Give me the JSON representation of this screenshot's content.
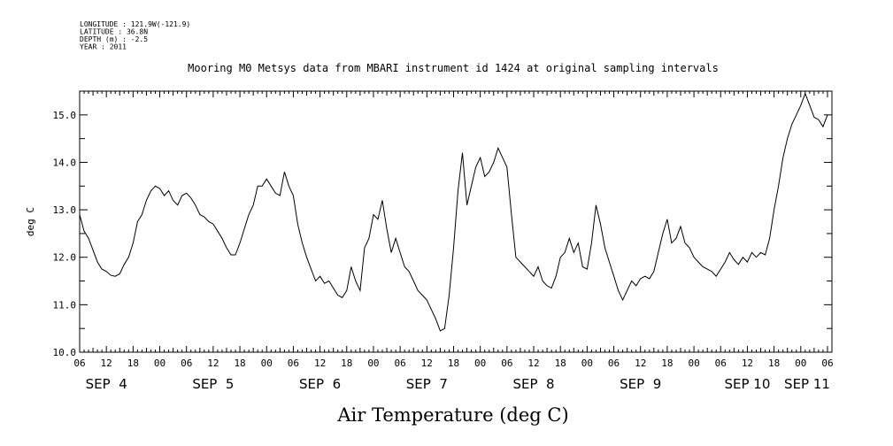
{
  "header": {
    "meta_lines": [
      "LONGITUDE : 121.9W(-121.9)",
      "LATITUDE : 36.8N",
      "DEPTH (m) : -2.5",
      "YEAR : 2011"
    ]
  },
  "chart_data": {
    "type": "line",
    "title": "Mooring M0 Metsys data from MBARI instrument id 1424 at original sampling intervals",
    "xlabel": "Air Temperature (deg C)",
    "ylabel": "deg C",
    "ylim": [
      10.0,
      15.5
    ],
    "y_ticks": [
      "10.0",
      "11.0",
      "12.0",
      "13.0",
      "14.0",
      "15.0"
    ],
    "xlim": [
      "2011-09-04T06:00",
      "2011-09-11T07:00"
    ],
    "x_hour_labels": [
      "06",
      "12",
      "18",
      "00",
      "06",
      "12",
      "18",
      "00",
      "06",
      "12",
      "18",
      "00",
      "06",
      "12",
      "18",
      "00",
      "06",
      "12",
      "18",
      "00",
      "06",
      "12",
      "18",
      "00",
      "06",
      "12",
      "18",
      "00",
      "06"
    ],
    "day_labels": [
      {
        "label": "SEP  4",
        "date": "2011-09-04"
      },
      {
        "label": "SEP  5",
        "date": "2011-09-05"
      },
      {
        "label": "SEP  6",
        "date": "2011-09-06"
      },
      {
        "label": "SEP  7",
        "date": "2011-09-07"
      },
      {
        "label": "SEP  8",
        "date": "2011-09-08"
      },
      {
        "label": "SEP  9",
        "date": "2011-09-09"
      },
      {
        "label": "SEP 10",
        "date": "2011-09-10"
      },
      {
        "label": "SEP 11",
        "date": "2011-09-11"
      }
    ],
    "grid": false,
    "series": [
      {
        "color": "#000000",
        "points": [
          [
            "2011-09-04T06:00",
            12.9
          ],
          [
            "2011-09-04T07:00",
            12.55
          ],
          [
            "2011-09-04T08:00",
            12.4
          ],
          [
            "2011-09-04T09:00",
            12.15
          ],
          [
            "2011-09-04T10:00",
            11.9
          ],
          [
            "2011-09-04T11:00",
            11.75
          ],
          [
            "2011-09-04T12:00",
            11.7
          ],
          [
            "2011-09-04T13:00",
            11.62
          ],
          [
            "2011-09-04T14:00",
            11.6
          ],
          [
            "2011-09-04T15:00",
            11.65
          ],
          [
            "2011-09-04T16:00",
            11.85
          ],
          [
            "2011-09-04T17:00",
            12.0
          ],
          [
            "2011-09-04T18:00",
            12.3
          ],
          [
            "2011-09-04T19:00",
            12.75
          ],
          [
            "2011-09-04T20:00",
            12.9
          ],
          [
            "2011-09-04T21:00",
            13.2
          ],
          [
            "2011-09-04T22:00",
            13.4
          ],
          [
            "2011-09-04T23:00",
            13.5
          ],
          [
            "2011-09-05T00:00",
            13.45
          ],
          [
            "2011-09-05T01:00",
            13.3
          ],
          [
            "2011-09-05T02:00",
            13.4
          ],
          [
            "2011-09-05T03:00",
            13.2
          ],
          [
            "2011-09-05T04:00",
            13.1
          ],
          [
            "2011-09-05T05:00",
            13.3
          ],
          [
            "2011-09-05T06:00",
            13.35
          ],
          [
            "2011-09-05T07:00",
            13.25
          ],
          [
            "2011-09-05T08:00",
            13.1
          ],
          [
            "2011-09-05T09:00",
            12.9
          ],
          [
            "2011-09-05T10:00",
            12.85
          ],
          [
            "2011-09-05T11:00",
            12.75
          ],
          [
            "2011-09-05T12:00",
            12.7
          ],
          [
            "2011-09-05T13:00",
            12.55
          ],
          [
            "2011-09-05T14:00",
            12.4
          ],
          [
            "2011-09-05T15:00",
            12.2
          ],
          [
            "2011-09-05T16:00",
            12.05
          ],
          [
            "2011-09-05T17:00",
            12.05
          ],
          [
            "2011-09-05T18:00",
            12.3
          ],
          [
            "2011-09-05T19:00",
            12.6
          ],
          [
            "2011-09-05T20:00",
            12.9
          ],
          [
            "2011-09-05T21:00",
            13.1
          ],
          [
            "2011-09-05T22:00",
            13.5
          ],
          [
            "2011-09-05T23:00",
            13.5
          ],
          [
            "2011-09-06T00:00",
            13.65
          ],
          [
            "2011-09-06T01:00",
            13.5
          ],
          [
            "2011-09-06T02:00",
            13.35
          ],
          [
            "2011-09-06T03:00",
            13.3
          ],
          [
            "2011-09-06T04:00",
            13.8
          ],
          [
            "2011-09-06T05:00",
            13.5
          ],
          [
            "2011-09-06T06:00",
            13.3
          ],
          [
            "2011-09-06T07:00",
            12.7
          ],
          [
            "2011-09-06T08:00",
            12.3
          ],
          [
            "2011-09-06T09:00",
            12.0
          ],
          [
            "2011-09-06T10:00",
            11.75
          ],
          [
            "2011-09-06T11:00",
            11.5
          ],
          [
            "2011-09-06T12:00",
            11.6
          ],
          [
            "2011-09-06T13:00",
            11.45
          ],
          [
            "2011-09-06T14:00",
            11.5
          ],
          [
            "2011-09-06T15:00",
            11.35
          ],
          [
            "2011-09-06T16:00",
            11.2
          ],
          [
            "2011-09-06T17:00",
            11.15
          ],
          [
            "2011-09-06T18:00",
            11.3
          ],
          [
            "2011-09-06T19:00",
            11.8
          ],
          [
            "2011-09-06T20:00",
            11.5
          ],
          [
            "2011-09-06T21:00",
            11.3
          ],
          [
            "2011-09-06T22:00",
            12.2
          ],
          [
            "2011-09-06T23:00",
            12.4
          ],
          [
            "2011-09-07T00:00",
            12.9
          ],
          [
            "2011-09-07T01:00",
            12.8
          ],
          [
            "2011-09-07T02:00",
            13.2
          ],
          [
            "2011-09-07T03:00",
            12.6
          ],
          [
            "2011-09-07T04:00",
            12.1
          ],
          [
            "2011-09-07T05:00",
            12.4
          ],
          [
            "2011-09-07T06:00",
            12.1
          ],
          [
            "2011-09-07T07:00",
            11.8
          ],
          [
            "2011-09-07T08:00",
            11.7
          ],
          [
            "2011-09-07T09:00",
            11.5
          ],
          [
            "2011-09-07T10:00",
            11.3
          ],
          [
            "2011-09-07T11:00",
            11.2
          ],
          [
            "2011-09-07T12:00",
            11.1
          ],
          [
            "2011-09-07T13:00",
            10.9
          ],
          [
            "2011-09-07T14:00",
            10.7
          ],
          [
            "2011-09-07T15:00",
            10.45
          ],
          [
            "2011-09-07T16:00",
            10.5
          ],
          [
            "2011-09-07T17:00",
            11.2
          ],
          [
            "2011-09-07T18:00",
            12.2
          ],
          [
            "2011-09-07T19:00",
            13.4
          ],
          [
            "2011-09-07T20:00",
            14.2
          ],
          [
            "2011-09-07T21:00",
            13.1
          ],
          [
            "2011-09-07T22:00",
            13.5
          ],
          [
            "2011-09-07T23:00",
            13.9
          ],
          [
            "2011-09-08T00:00",
            14.1
          ],
          [
            "2011-09-08T01:00",
            13.7
          ],
          [
            "2011-09-08T02:00",
            13.8
          ],
          [
            "2011-09-08T03:00",
            14.0
          ],
          [
            "2011-09-08T04:00",
            14.3
          ],
          [
            "2011-09-08T05:00",
            14.1
          ],
          [
            "2011-09-08T06:00",
            13.9
          ],
          [
            "2011-09-08T07:00",
            12.9
          ],
          [
            "2011-09-08T08:00",
            12.0
          ],
          [
            "2011-09-08T09:00",
            11.9
          ],
          [
            "2011-09-08T10:00",
            11.8
          ],
          [
            "2011-09-08T11:00",
            11.7
          ],
          [
            "2011-09-08T12:00",
            11.6
          ],
          [
            "2011-09-08T13:00",
            11.8
          ],
          [
            "2011-09-08T14:00",
            11.5
          ],
          [
            "2011-09-08T15:00",
            11.4
          ],
          [
            "2011-09-08T16:00",
            11.35
          ],
          [
            "2011-09-08T17:00",
            11.6
          ],
          [
            "2011-09-08T18:00",
            12.0
          ],
          [
            "2011-09-08T19:00",
            12.1
          ],
          [
            "2011-09-08T20:00",
            12.4
          ],
          [
            "2011-09-08T21:00",
            12.1
          ],
          [
            "2011-09-08T22:00",
            12.3
          ],
          [
            "2011-09-08T23:00",
            11.8
          ],
          [
            "2011-09-09T00:00",
            11.75
          ],
          [
            "2011-09-09T01:00",
            12.3
          ],
          [
            "2011-09-09T02:00",
            13.1
          ],
          [
            "2011-09-09T03:00",
            12.7
          ],
          [
            "2011-09-09T04:00",
            12.2
          ],
          [
            "2011-09-09T05:00",
            11.9
          ],
          [
            "2011-09-09T06:00",
            11.6
          ],
          [
            "2011-09-09T07:00",
            11.3
          ],
          [
            "2011-09-09T08:00",
            11.1
          ],
          [
            "2011-09-09T09:00",
            11.3
          ],
          [
            "2011-09-09T10:00",
            11.5
          ],
          [
            "2011-09-09T11:00",
            11.4
          ],
          [
            "2011-09-09T12:00",
            11.55
          ],
          [
            "2011-09-09T13:00",
            11.6
          ],
          [
            "2011-09-09T14:00",
            11.55
          ],
          [
            "2011-09-09T15:00",
            11.7
          ],
          [
            "2011-09-09T16:00",
            12.1
          ],
          [
            "2011-09-09T17:00",
            12.5
          ],
          [
            "2011-09-09T18:00",
            12.8
          ],
          [
            "2011-09-09T19:00",
            12.3
          ],
          [
            "2011-09-09T20:00",
            12.4
          ],
          [
            "2011-09-09T21:00",
            12.65
          ],
          [
            "2011-09-09T22:00",
            12.3
          ],
          [
            "2011-09-09T23:00",
            12.2
          ],
          [
            "2011-09-10T00:00",
            12.0
          ],
          [
            "2011-09-10T01:00",
            11.9
          ],
          [
            "2011-09-10T02:00",
            11.8
          ],
          [
            "2011-09-10T03:00",
            11.75
          ],
          [
            "2011-09-10T04:00",
            11.7
          ],
          [
            "2011-09-10T05:00",
            11.6
          ],
          [
            "2011-09-10T06:00",
            11.75
          ],
          [
            "2011-09-10T07:00",
            11.9
          ],
          [
            "2011-09-10T08:00",
            12.1
          ],
          [
            "2011-09-10T09:00",
            11.95
          ],
          [
            "2011-09-10T10:00",
            11.85
          ],
          [
            "2011-09-10T11:00",
            12.0
          ],
          [
            "2011-09-10T12:00",
            11.9
          ],
          [
            "2011-09-10T13:00",
            12.1
          ],
          [
            "2011-09-10T14:00",
            12.0
          ],
          [
            "2011-09-10T15:00",
            12.1
          ],
          [
            "2011-09-10T16:00",
            12.05
          ],
          [
            "2011-09-10T17:00",
            12.4
          ],
          [
            "2011-09-10T18:00",
            13.0
          ],
          [
            "2011-09-10T19:00",
            13.5
          ],
          [
            "2011-09-10T20:00",
            14.1
          ],
          [
            "2011-09-10T21:00",
            14.5
          ],
          [
            "2011-09-10T22:00",
            14.8
          ],
          [
            "2011-09-10T23:00",
            15.0
          ],
          [
            "2011-09-11T00:00",
            15.2
          ],
          [
            "2011-09-11T01:00",
            15.45
          ],
          [
            "2011-09-11T02:00",
            15.2
          ],
          [
            "2011-09-11T03:00",
            14.95
          ],
          [
            "2011-09-11T04:00",
            14.9
          ],
          [
            "2011-09-11T05:00",
            14.75
          ],
          [
            "2011-09-11T06:00",
            15.0
          ]
        ]
      }
    ]
  }
}
